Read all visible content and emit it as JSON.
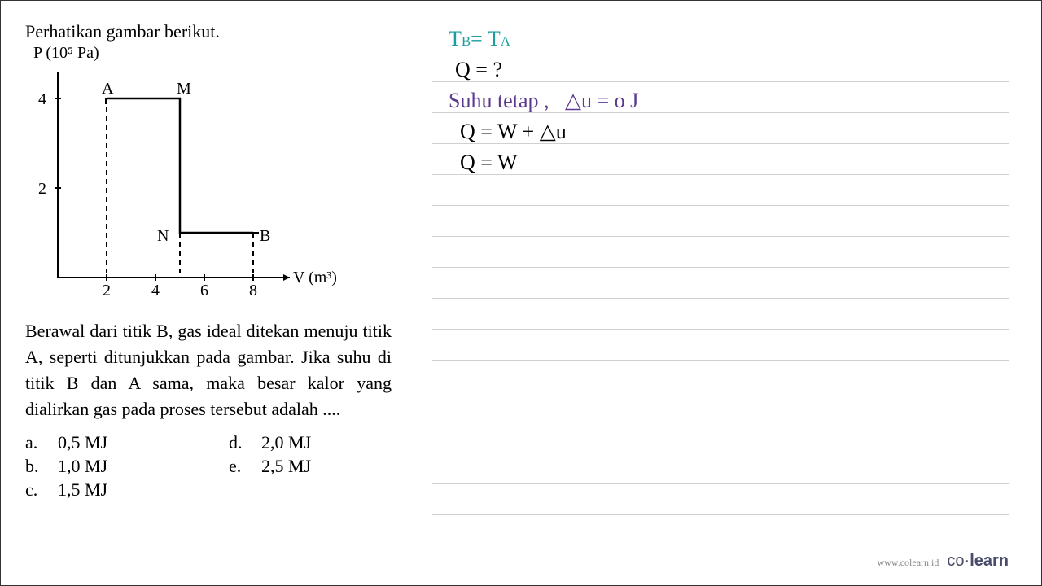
{
  "question": {
    "intro": "Perhatikan gambar berikut.",
    "y_axis_label": "P (10⁵ Pa)",
    "x_axis_label": "V (m³)",
    "body": "Berawal dari titik B, gas ideal ditekan menuju titik A, seperti ditunjukkan pada gambar. Jika suhu di titik B dan A sama, maka besar kalor yang dialirkan gas pada proses tersebut adalah ....",
    "options": {
      "a": "0,5 MJ",
      "b": "1,0 MJ",
      "c": "1,5 MJ",
      "d": "2,0 MJ",
      "e": "2,5 MJ"
    }
  },
  "chart": {
    "origin_x": 40,
    "origin_y": 260,
    "x_scale": 30,
    "y_scale": 55,
    "x_ticks": [
      2,
      4,
      6,
      8
    ],
    "y_ticks": [
      2,
      4
    ],
    "points": {
      "A": {
        "x": 2,
        "y": 4,
        "label": "A",
        "label_dx": -6,
        "label_dy": -24
      },
      "M": {
        "x": 5,
        "y": 4,
        "label": "M",
        "label_dx": -4,
        "label_dy": -24
      },
      "N": {
        "x": 5,
        "y": 1,
        "label": "N",
        "label_dx": -28,
        "label_dy": -8
      },
      "B": {
        "x": 8,
        "y": 1,
        "label": "B",
        "label_dx": 8,
        "label_dy": -8
      }
    },
    "path_color": "#000000",
    "axis_color": "#000000",
    "line_width": 2.5,
    "font_size": 20
  },
  "handwriting": {
    "lines": [
      {
        "html": "T<span class='sub'>B</span> = T<span class='sub'>A</span>",
        "color": "teal"
      },
      {
        "html": "Q = ?",
        "color": "black",
        "indent": 8
      },
      {
        "html": "Suhu tetap ,&nbsp;&nbsp; △u = o J",
        "color": "purple",
        "indent": 0
      },
      {
        "html": "Q = W + △u",
        "color": "black",
        "indent": 14
      },
      {
        "html": "Q = W",
        "color": "black",
        "indent": 14
      }
    ]
  },
  "footer": {
    "url": "www.colearn.id",
    "brand_left": "co",
    "brand_dot": "·",
    "brand_right": "learn"
  }
}
